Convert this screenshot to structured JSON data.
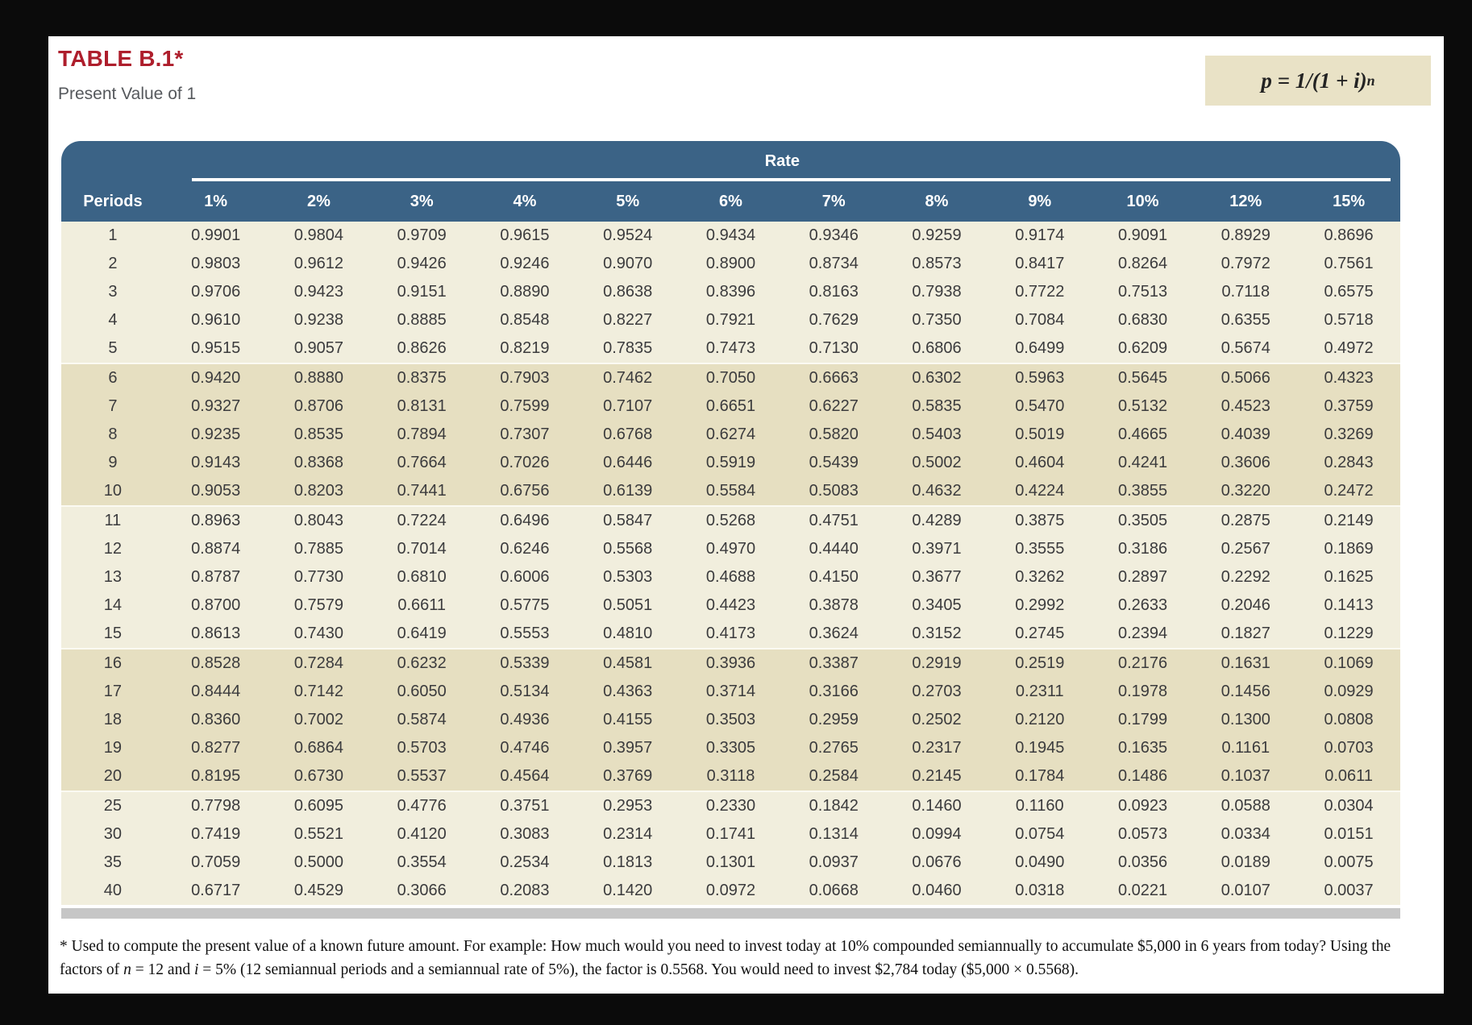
{
  "page": {
    "title": "TABLE B.1*",
    "subtitle": "Present Value of 1"
  },
  "formula": {
    "base": "p = 1/(1 + i)",
    "exponent": "n"
  },
  "colors": {
    "header_blue": "#3b6386",
    "band_light": "#f1eedd",
    "band_dark": "#e6dfc1",
    "title_red": "#ae1e2c",
    "formula_bg": "#e9e2c6",
    "footer_bar": "#c6c6c6"
  },
  "table": {
    "group_header": "Rate",
    "periods_label": "Periods",
    "rate_columns": [
      "1%",
      "2%",
      "3%",
      "4%",
      "5%",
      "6%",
      "7%",
      "8%",
      "9%",
      "10%",
      "12%",
      "15%"
    ],
    "rows": [
      {
        "period": "1",
        "values": [
          "0.9901",
          "0.9804",
          "0.9709",
          "0.9615",
          "0.9524",
          "0.9434",
          "0.9346",
          "0.9259",
          "0.9174",
          "0.9091",
          "0.8929",
          "0.8696"
        ]
      },
      {
        "period": "2",
        "values": [
          "0.9803",
          "0.9612",
          "0.9426",
          "0.9246",
          "0.9070",
          "0.8900",
          "0.8734",
          "0.8573",
          "0.8417",
          "0.8264",
          "0.7972",
          "0.7561"
        ]
      },
      {
        "period": "3",
        "values": [
          "0.9706",
          "0.9423",
          "0.9151",
          "0.8890",
          "0.8638",
          "0.8396",
          "0.8163",
          "0.7938",
          "0.7722",
          "0.7513",
          "0.7118",
          "0.6575"
        ]
      },
      {
        "period": "4",
        "values": [
          "0.9610",
          "0.9238",
          "0.8885",
          "0.8548",
          "0.8227",
          "0.7921",
          "0.7629",
          "0.7350",
          "0.7084",
          "0.6830",
          "0.6355",
          "0.5718"
        ]
      },
      {
        "period": "5",
        "values": [
          "0.9515",
          "0.9057",
          "0.8626",
          "0.8219",
          "0.7835",
          "0.7473",
          "0.7130",
          "0.6806",
          "0.6499",
          "0.6209",
          "0.5674",
          "0.4972"
        ]
      },
      {
        "period": "6",
        "values": [
          "0.9420",
          "0.8880",
          "0.8375",
          "0.7903",
          "0.7462",
          "0.7050",
          "0.6663",
          "0.6302",
          "0.5963",
          "0.5645",
          "0.5066",
          "0.4323"
        ]
      },
      {
        "period": "7",
        "values": [
          "0.9327",
          "0.8706",
          "0.8131",
          "0.7599",
          "0.7107",
          "0.6651",
          "0.6227",
          "0.5835",
          "0.5470",
          "0.5132",
          "0.4523",
          "0.3759"
        ]
      },
      {
        "period": "8",
        "values": [
          "0.9235",
          "0.8535",
          "0.7894",
          "0.7307",
          "0.6768",
          "0.6274",
          "0.5820",
          "0.5403",
          "0.5019",
          "0.4665",
          "0.4039",
          "0.3269"
        ]
      },
      {
        "period": "9",
        "values": [
          "0.9143",
          "0.8368",
          "0.7664",
          "0.7026",
          "0.6446",
          "0.5919",
          "0.5439",
          "0.5002",
          "0.4604",
          "0.4241",
          "0.3606",
          "0.2843"
        ]
      },
      {
        "period": "10",
        "values": [
          "0.9053",
          "0.8203",
          "0.7441",
          "0.6756",
          "0.6139",
          "0.5584",
          "0.5083",
          "0.4632",
          "0.4224",
          "0.3855",
          "0.3220",
          "0.2472"
        ]
      },
      {
        "period": "11",
        "values": [
          "0.8963",
          "0.8043",
          "0.7224",
          "0.6496",
          "0.5847",
          "0.5268",
          "0.4751",
          "0.4289",
          "0.3875",
          "0.3505",
          "0.2875",
          "0.2149"
        ]
      },
      {
        "period": "12",
        "values": [
          "0.8874",
          "0.7885",
          "0.7014",
          "0.6246",
          "0.5568",
          "0.4970",
          "0.4440",
          "0.3971",
          "0.3555",
          "0.3186",
          "0.2567",
          "0.1869"
        ]
      },
      {
        "period": "13",
        "values": [
          "0.8787",
          "0.7730",
          "0.6810",
          "0.6006",
          "0.5303",
          "0.4688",
          "0.4150",
          "0.3677",
          "0.3262",
          "0.2897",
          "0.2292",
          "0.1625"
        ]
      },
      {
        "period": "14",
        "values": [
          "0.8700",
          "0.7579",
          "0.6611",
          "0.5775",
          "0.5051",
          "0.4423",
          "0.3878",
          "0.3405",
          "0.2992",
          "0.2633",
          "0.2046",
          "0.1413"
        ]
      },
      {
        "period": "15",
        "values": [
          "0.8613",
          "0.7430",
          "0.6419",
          "0.5553",
          "0.4810",
          "0.4173",
          "0.3624",
          "0.3152",
          "0.2745",
          "0.2394",
          "0.1827",
          "0.1229"
        ]
      },
      {
        "period": "16",
        "values": [
          "0.8528",
          "0.7284",
          "0.6232",
          "0.5339",
          "0.4581",
          "0.3936",
          "0.3387",
          "0.2919",
          "0.2519",
          "0.2176",
          "0.1631",
          "0.1069"
        ]
      },
      {
        "period": "17",
        "values": [
          "0.8444",
          "0.7142",
          "0.6050",
          "0.5134",
          "0.4363",
          "0.3714",
          "0.3166",
          "0.2703",
          "0.2311",
          "0.1978",
          "0.1456",
          "0.0929"
        ]
      },
      {
        "period": "18",
        "values": [
          "0.8360",
          "0.7002",
          "0.5874",
          "0.4936",
          "0.4155",
          "0.3503",
          "0.2959",
          "0.2502",
          "0.2120",
          "0.1799",
          "0.1300",
          "0.0808"
        ]
      },
      {
        "period": "19",
        "values": [
          "0.8277",
          "0.6864",
          "0.5703",
          "0.4746",
          "0.3957",
          "0.3305",
          "0.2765",
          "0.2317",
          "0.1945",
          "0.1635",
          "0.1161",
          "0.0703"
        ]
      },
      {
        "period": "20",
        "values": [
          "0.8195",
          "0.6730",
          "0.5537",
          "0.4564",
          "0.3769",
          "0.3118",
          "0.2584",
          "0.2145",
          "0.1784",
          "0.1486",
          "0.1037",
          "0.0611"
        ]
      },
      {
        "period": "25",
        "values": [
          "0.7798",
          "0.6095",
          "0.4776",
          "0.3751",
          "0.2953",
          "0.2330",
          "0.1842",
          "0.1460",
          "0.1160",
          "0.0923",
          "0.0588",
          "0.0304"
        ]
      },
      {
        "period": "30",
        "values": [
          "0.7419",
          "0.5521",
          "0.4120",
          "0.3083",
          "0.2314",
          "0.1741",
          "0.1314",
          "0.0994",
          "0.0754",
          "0.0573",
          "0.0334",
          "0.0151"
        ]
      },
      {
        "period": "35",
        "values": [
          "0.7059",
          "0.5000",
          "0.3554",
          "0.2534",
          "0.1813",
          "0.1301",
          "0.0937",
          "0.0676",
          "0.0490",
          "0.0356",
          "0.0189",
          "0.0075"
        ]
      },
      {
        "period": "40",
        "values": [
          "0.6717",
          "0.4529",
          "0.3066",
          "0.2083",
          "0.1420",
          "0.0972",
          "0.0668",
          "0.0460",
          "0.0318",
          "0.0221",
          "0.0107",
          "0.0037"
        ]
      }
    ]
  },
  "footnote": {
    "segments": [
      {
        "text": "* Used to compute the present value of a known future amount. For example: How much would you need to invest today at 10% compounded semiannually to accumulate $5,000 in 6 years from today? Using the factors of ",
        "italic": false
      },
      {
        "text": "n",
        "italic": true
      },
      {
        "text": " = 12 and ",
        "italic": false
      },
      {
        "text": "i",
        "italic": true
      },
      {
        "text": " = 5% (12 semiannual periods and a semiannual rate of 5%), the factor is 0.5568. You would need to invest $2,784 today ($5,000 × 0.5568).",
        "italic": false
      }
    ]
  }
}
